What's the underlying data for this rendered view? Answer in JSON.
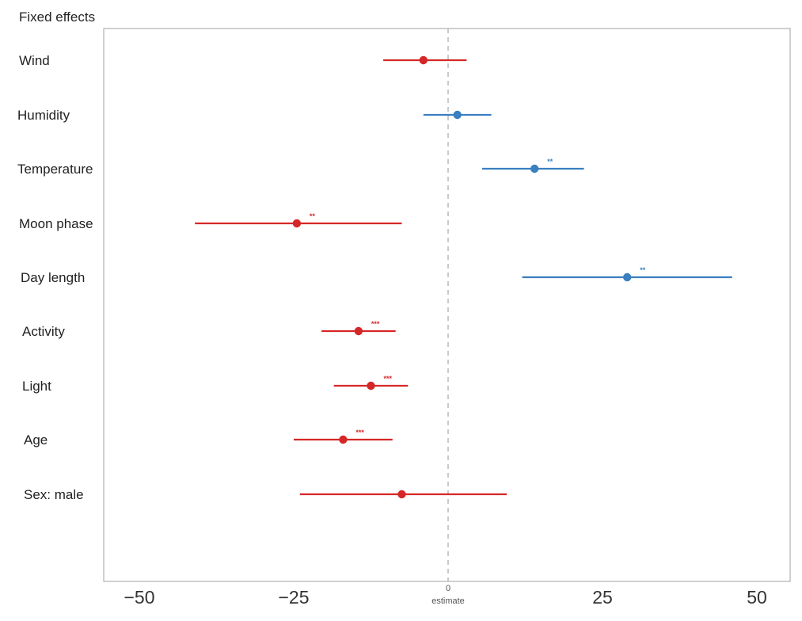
{
  "chart_data": {
    "type": "forest",
    "header": "Fixed effects",
    "xlabel": "estimate",
    "xlim": [
      -55,
      56
    ],
    "x_ticks": [
      -50,
      -25,
      0,
      25,
      50
    ],
    "x_tick_labels": [
      "−50",
      "−25",
      "0",
      "25",
      "50"
    ],
    "reference_line": 0,
    "colors": {
      "negative": "#d62728",
      "positive": "#3a7fbf"
    },
    "grid": false,
    "rows": [
      {
        "label": "Wind",
        "estimate": -4,
        "lower": -10.5,
        "upper": 3,
        "sig": ""
      },
      {
        "label": "Humidity",
        "estimate": 1.5,
        "lower": -4,
        "upper": 7,
        "sig": ""
      },
      {
        "label": "Temperature",
        "estimate": 14,
        "lower": 5.5,
        "upper": 22,
        "sig": "**"
      },
      {
        "label": "Moon phase",
        "estimate": -24.5,
        "lower": -41,
        "upper": -7.5,
        "sig": "**"
      },
      {
        "label": "Day length",
        "estimate": 29,
        "lower": 12,
        "upper": 46,
        "sig": "**"
      },
      {
        "label": "Activity",
        "estimate": -14.5,
        "lower": -20.5,
        "upper": -8.5,
        "sig": "***"
      },
      {
        "label": "Light",
        "estimate": -12.5,
        "lower": -18.5,
        "upper": -6.5,
        "sig": "***"
      },
      {
        "label": "Age",
        "estimate": -17,
        "lower": -25,
        "upper": -9,
        "sig": "***"
      },
      {
        "label": "Sex: male",
        "estimate": -7.5,
        "lower": -24,
        "upper": 9.5,
        "sig": ""
      }
    ]
  }
}
